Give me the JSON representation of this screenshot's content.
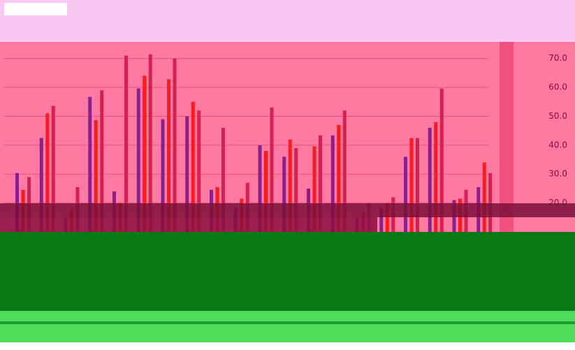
{
  "chart_data": {
    "type": "bar",
    "categories": [
      null,
      null,
      null,
      null,
      null,
      null,
      null,
      null,
      null,
      null,
      null,
      null,
      null,
      null,
      null,
      null,
      null,
      null,
      null,
      null
    ],
    "series": [
      {
        "color": "#8a1f8f",
        "values": [
          30.4,
          42.5,
          15,
          56.7,
          24,
          59.6,
          49,
          50,
          24.6,
          18,
          40,
          36,
          25,
          43.4,
          15,
          18,
          36,
          46,
          21,
          25.5
        ]
      },
      {
        "color": "#ff1a1a",
        "values": [
          24.6,
          51,
          18,
          48.7,
          20,
          64,
          62.8,
          55,
          25.5,
          21.5,
          38,
          42,
          39.6,
          47,
          17,
          20,
          42.5,
          48,
          21.5,
          34
        ]
      },
      {
        "color": "#d62050",
        "values": [
          29,
          53.6,
          25.5,
          59,
          71,
          71.4,
          70,
          52,
          46,
          27,
          53,
          39,
          43.4,
          52,
          20,
          22,
          42.5,
          59.6,
          24.6,
          30.4
        ]
      }
    ],
    "ylim": [
      10,
      75
    ],
    "yticks": [
      {
        "value": 20,
        "label": "20.0"
      },
      {
        "value": 30,
        "label": "30.0"
      },
      {
        "value": 40,
        "label": "40.0"
      },
      {
        "value": 50,
        "label": "50.0"
      },
      {
        "value": 60,
        "label": "60.0"
      },
      {
        "value": 70,
        "label": "70.0"
      }
    ],
    "grid": true
  }
}
